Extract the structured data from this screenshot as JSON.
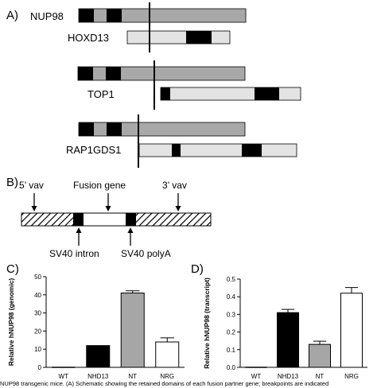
{
  "panels": {
    "a": {
      "label": "A)",
      "genes": {
        "nup98": "NUP98",
        "hoxd13": "HOXD13",
        "top1": "TOP1",
        "rap1gds1": "RAP1GDS1"
      }
    },
    "b": {
      "label": "B)",
      "labels": {
        "vav5": "5’ vav",
        "fusion": "Fusion gene",
        "vav3": "3’ vav",
        "intron": "SV40 intron",
        "polya": "SV40 polyA"
      }
    },
    "c": {
      "label": "C)"
    },
    "d": {
      "label": "D)"
    }
  },
  "chart_data": [
    {
      "type": "bar",
      "panel": "C",
      "ylabel": "Relative hNUP98 (genomic)",
      "categories": [
        "WT",
        "NHD13",
        "NT",
        "NRG"
      ],
      "values": [
        0,
        12,
        41,
        14
      ],
      "errors": [
        0,
        0,
        1.2,
        2.3
      ],
      "yticks": [
        0,
        10,
        20,
        30,
        40,
        50
      ],
      "ylim": [
        0,
        50
      ],
      "colors": [
        "#ffffff",
        "#000000",
        "#a6a6a6",
        "#ffffff"
      ]
    },
    {
      "type": "bar",
      "panel": "D",
      "ylabel": "Relative hNUP98 (transcript)",
      "categories": [
        "WT",
        "NHD13",
        "NT",
        "NRG"
      ],
      "values": [
        0,
        0.31,
        0.13,
        0.42
      ],
      "errors": [
        0,
        0.018,
        0.018,
        0.032
      ],
      "yticks": [
        0.0,
        0.1,
        0.2,
        0.3,
        0.4,
        0.5
      ],
      "ylim": [
        0,
        0.5
      ],
      "colors": [
        "#ffffff",
        "#000000",
        "#a6a6a6",
        "#ffffff"
      ]
    }
  ],
  "caption": "NUP98 transgenic mice. (A) Schematic showing the retained domains of each fusion partner gene; breakpoints are indicated"
}
